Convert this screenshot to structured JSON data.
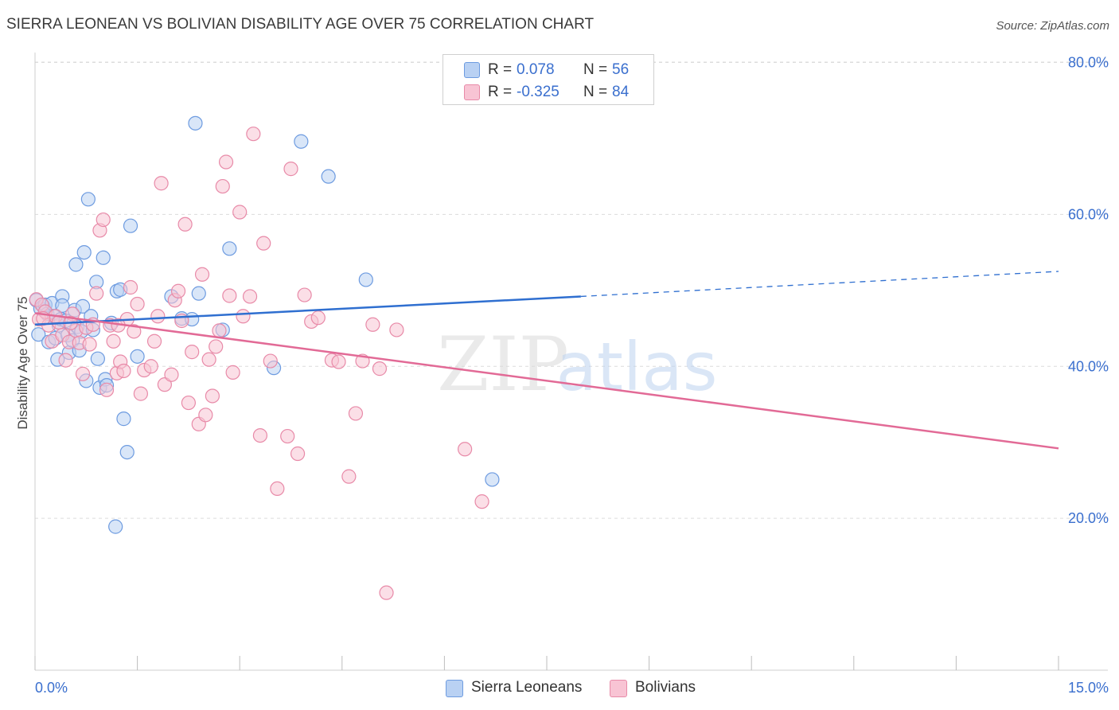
{
  "title": "SIERRA LEONEAN VS BOLIVIAN DISABILITY AGE OVER 75 CORRELATION CHART",
  "source": "Source: ZipAtlas.com",
  "watermark": {
    "zip": "ZIP",
    "atlas": "atlas"
  },
  "legend": {
    "rows": [
      {
        "r_label": "R =",
        "r_value": "0.078",
        "n_label": "N =",
        "n_value": "56",
        "swatch_fill": "#b9d1f3",
        "swatch_stroke": "#6d9be0"
      },
      {
        "r_label": "R =",
        "r_value": "-0.325",
        "n_label": "N =",
        "n_value": "84",
        "swatch_fill": "#f8c4d4",
        "swatch_stroke": "#e88aa8"
      }
    ]
  },
  "bottom_legend": [
    {
      "label": "Sierra Leoneans",
      "fill": "#b9d1f3",
      "stroke": "#6d9be0"
    },
    {
      "label": "Bolivians",
      "fill": "#f8c4d4",
      "stroke": "#e88aa8"
    }
  ],
  "chart_data": {
    "type": "scatter",
    "title": "SIERRA LEONEAN VS BOLIVIAN DISABILITY AGE OVER 75 CORRELATION CHART",
    "xlabel": "",
    "ylabel": "Disability Age Over 75",
    "xlim": [
      0,
      15
    ],
    "ylim": [
      0,
      85
    ],
    "x_ticks": [
      {
        "value": 0,
        "label": "0.0%"
      },
      {
        "value": 15,
        "label": "15.0%"
      }
    ],
    "y_ticks": [
      {
        "value": 20,
        "label": "20.0%"
      },
      {
        "value": 40,
        "label": "40.0%"
      },
      {
        "value": 60,
        "label": "60.0%"
      },
      {
        "value": 80,
        "label": "80.0%"
      }
    ],
    "grid": true,
    "legend_position": "top-center",
    "series": [
      {
        "name": "Sierra Leoneans",
        "color": "#6d9be0",
        "fill": "#b9d1f3",
        "trend_color": "#2f6fd0",
        "trend": {
          "x": [
            0,
            8.0,
            15
          ],
          "y": [
            45.5,
            49.2,
            52.5
          ],
          "solid_to": 8.0
        },
        "points": [
          [
            0.02,
            48.7
          ],
          [
            0.05,
            44.2
          ],
          [
            0.08,
            47.6
          ],
          [
            0.12,
            47.9
          ],
          [
            0.15,
            48.1
          ],
          [
            0.18,
            46.9
          ],
          [
            0.2,
            43.2
          ],
          [
            0.25,
            48.3
          ],
          [
            0.28,
            46.6
          ],
          [
            0.3,
            43.7
          ],
          [
            0.33,
            40.9
          ],
          [
            0.35,
            45.4
          ],
          [
            0.38,
            46.2
          ],
          [
            0.4,
            49.2
          ],
          [
            0.45,
            46.0
          ],
          [
            0.48,
            44.1
          ],
          [
            0.5,
            41.8
          ],
          [
            0.55,
            43.4
          ],
          [
            0.58,
            47.4
          ],
          [
            0.6,
            53.4
          ],
          [
            0.62,
            45.2
          ],
          [
            0.65,
            42.1
          ],
          [
            0.68,
            44.6
          ],
          [
            0.7,
            47.9
          ],
          [
            0.72,
            55.0
          ],
          [
            0.75,
            38.1
          ],
          [
            0.78,
            62.0
          ],
          [
            0.82,
            46.6
          ],
          [
            0.85,
            44.8
          ],
          [
            0.9,
            51.1
          ],
          [
            0.92,
            41.0
          ],
          [
            0.95,
            37.2
          ],
          [
            1.0,
            54.3
          ],
          [
            1.03,
            38.3
          ],
          [
            1.05,
            37.5
          ],
          [
            1.12,
            45.7
          ],
          [
            1.18,
            18.9
          ],
          [
            1.2,
            49.9
          ],
          [
            1.25,
            50.1
          ],
          [
            1.3,
            33.1
          ],
          [
            1.35,
            28.7
          ],
          [
            1.4,
            58.5
          ],
          [
            1.5,
            41.3
          ],
          [
            2.0,
            49.2
          ],
          [
            2.15,
            46.3
          ],
          [
            2.3,
            46.2
          ],
          [
            2.35,
            72.0
          ],
          [
            2.4,
            49.6
          ],
          [
            2.75,
            44.8
          ],
          [
            2.85,
            55.5
          ],
          [
            3.5,
            39.8
          ],
          [
            3.9,
            69.6
          ],
          [
            4.3,
            65.0
          ],
          [
            4.85,
            51.4
          ],
          [
            6.7,
            25.1
          ],
          [
            0.4,
            48.0
          ]
        ]
      },
      {
        "name": "Bolivians",
        "color": "#e88aa8",
        "fill": "#f8c4d4",
        "trend_color": "#e26a96",
        "trend": {
          "x": [
            0,
            15
          ],
          "y": [
            47.0,
            29.2
          ],
          "solid_to": 15
        },
        "points": [
          [
            0.02,
            48.8
          ],
          [
            0.06,
            46.2
          ],
          [
            0.1,
            48.1
          ],
          [
            0.15,
            47.2
          ],
          [
            0.2,
            45.4
          ],
          [
            0.25,
            43.3
          ],
          [
            0.3,
            46.6
          ],
          [
            0.35,
            45.8
          ],
          [
            0.4,
            44.1
          ],
          [
            0.45,
            40.8
          ],
          [
            0.5,
            43.2
          ],
          [
            0.55,
            46.9
          ],
          [
            0.6,
            44.7
          ],
          [
            0.65,
            43.1
          ],
          [
            0.7,
            39.0
          ],
          [
            0.75,
            45.1
          ],
          [
            0.8,
            42.9
          ],
          [
            0.85,
            45.5
          ],
          [
            0.9,
            49.6
          ],
          [
            0.95,
            57.9
          ],
          [
            1.0,
            59.3
          ],
          [
            1.05,
            36.9
          ],
          [
            1.1,
            45.4
          ],
          [
            1.15,
            43.3
          ],
          [
            1.2,
            39.1
          ],
          [
            1.25,
            40.6
          ],
          [
            1.3,
            39.4
          ],
          [
            1.35,
            46.2
          ],
          [
            1.4,
            50.4
          ],
          [
            1.45,
            44.6
          ],
          [
            1.5,
            48.2
          ],
          [
            1.55,
            36.4
          ],
          [
            1.6,
            39.5
          ],
          [
            1.7,
            40.0
          ],
          [
            1.75,
            43.3
          ],
          [
            1.8,
            46.6
          ],
          [
            1.85,
            64.1
          ],
          [
            1.9,
            37.6
          ],
          [
            2.0,
            38.9
          ],
          [
            2.05,
            48.7
          ],
          [
            2.1,
            49.9
          ],
          [
            2.15,
            46.0
          ],
          [
            2.2,
            58.7
          ],
          [
            2.25,
            35.2
          ],
          [
            2.3,
            41.9
          ],
          [
            2.4,
            32.4
          ],
          [
            2.45,
            52.1
          ],
          [
            2.5,
            33.6
          ],
          [
            2.55,
            40.9
          ],
          [
            2.6,
            36.1
          ],
          [
            2.65,
            42.6
          ],
          [
            2.7,
            44.7
          ],
          [
            2.75,
            63.7
          ],
          [
            2.8,
            66.9
          ],
          [
            2.85,
            49.3
          ],
          [
            2.9,
            39.2
          ],
          [
            3.0,
            60.3
          ],
          [
            3.05,
            46.6
          ],
          [
            3.15,
            49.2
          ],
          [
            3.2,
            70.6
          ],
          [
            3.3,
            30.9
          ],
          [
            3.35,
            56.2
          ],
          [
            3.45,
            40.7
          ],
          [
            3.55,
            23.9
          ],
          [
            3.7,
            30.8
          ],
          [
            3.75,
            66.0
          ],
          [
            3.85,
            28.5
          ],
          [
            3.95,
            49.4
          ],
          [
            4.05,
            45.9
          ],
          [
            4.15,
            46.4
          ],
          [
            4.35,
            40.8
          ],
          [
            4.45,
            40.6
          ],
          [
            4.6,
            25.5
          ],
          [
            4.7,
            33.8
          ],
          [
            4.8,
            40.7
          ],
          [
            4.95,
            45.5
          ],
          [
            5.05,
            39.7
          ],
          [
            5.15,
            10.2
          ],
          [
            5.3,
            44.8
          ],
          [
            6.3,
            29.1
          ],
          [
            6.55,
            22.2
          ],
          [
            0.12,
            46.3
          ],
          [
            0.52,
            45.7
          ],
          [
            1.22,
            45.4
          ]
        ]
      }
    ]
  }
}
